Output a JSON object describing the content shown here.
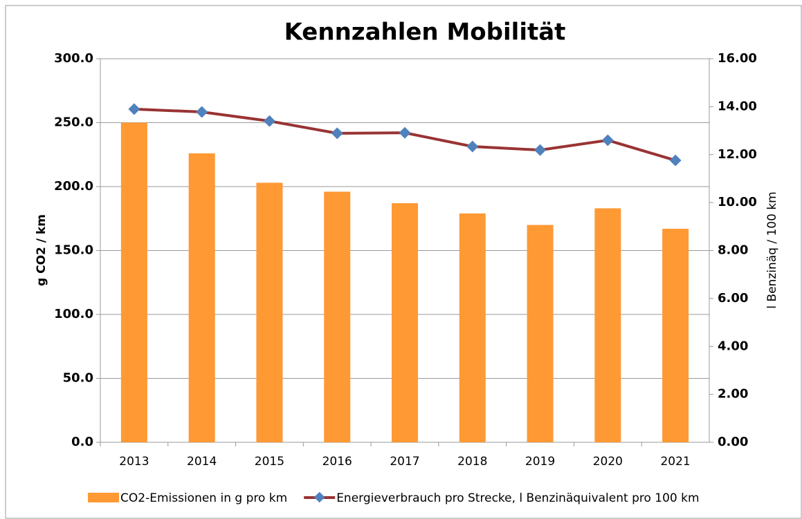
{
  "chart_data": {
    "type": "bar_line",
    "title": "Kennzahlen Mobilität",
    "y_label": "g CO2 / km",
    "y2_label": "l Benzinäq / 100 km",
    "categories": [
      "2013",
      "2014",
      "2015",
      "2016",
      "2017",
      "2018",
      "2019",
      "2020",
      "2021"
    ],
    "series": [
      {
        "name": "CO2-Emissionen in g pro km",
        "type": "bar",
        "color": "#ff9933",
        "values": [
          250,
          226,
          203,
          196,
          187,
          179,
          170,
          183,
          167
        ]
      },
      {
        "name": "Energieverbrauch pro Strecke, l Benzinäquivalent pro 100 km",
        "type": "line",
        "axis": "y2",
        "color": "#993333",
        "marker_color": "#4f81bd",
        "values": [
          13.9,
          13.78,
          13.4,
          12.89,
          12.91,
          12.34,
          12.19,
          12.6,
          11.76
        ]
      }
    ],
    "ylim": [
      0,
      300
    ],
    "yticks": [
      {
        "value": 0,
        "label": "0.0"
      },
      {
        "value": 50,
        "label": "50.0"
      },
      {
        "value": 100,
        "label": "100.0"
      },
      {
        "value": 150,
        "label": "150.0"
      },
      {
        "value": 200,
        "label": "200.0"
      },
      {
        "value": 250,
        "label": "250.0"
      },
      {
        "value": 300,
        "label": "300.0"
      }
    ],
    "y2lim": [
      0,
      16
    ],
    "y2ticks": [
      {
        "value": 0,
        "label": "0.00"
      },
      {
        "value": 2,
        "label": "2.00"
      },
      {
        "value": 4,
        "label": "4.00"
      },
      {
        "value": 6,
        "label": "6.00"
      },
      {
        "value": 8,
        "label": "8.00"
      },
      {
        "value": 10,
        "label": "10.00"
      },
      {
        "value": 12,
        "label": "12.00"
      },
      {
        "value": 14,
        "label": "14.00"
      },
      {
        "value": 16,
        "label": "16.00"
      }
    ],
    "grid": true,
    "legend": "bottom"
  }
}
